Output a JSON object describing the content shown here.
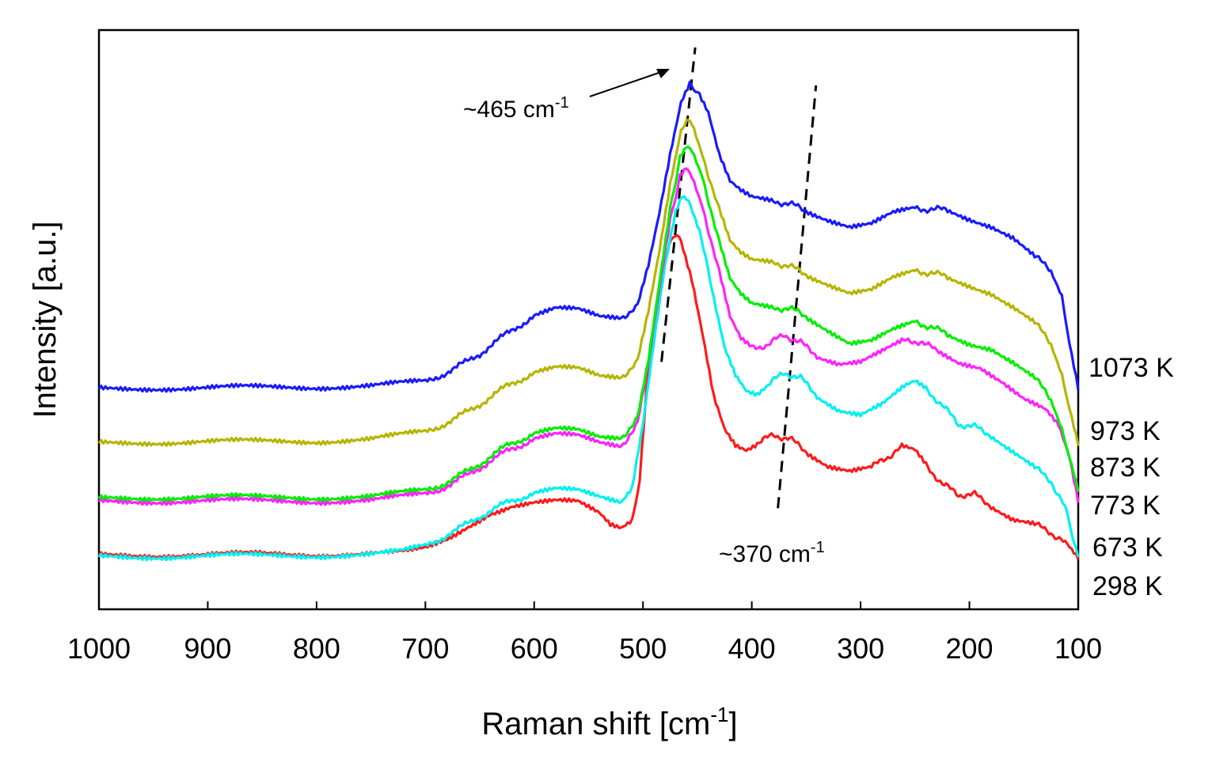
{
  "chart_data": {
    "type": "line",
    "title": "",
    "xlabel": "Raman shift [cm",
    "xlabel_sup": "-1",
    "xlabel_suffix": "]",
    "ylabel": "Intensity [a.u.]",
    "xlim": [
      1000,
      100
    ],
    "x_reversed": true,
    "ylim": [
      0,
      1
    ],
    "grid": false,
    "legend": "right-side labels",
    "x_ticks": [
      1000,
      900,
      800,
      700,
      600,
      500,
      400,
      300,
      200,
      100
    ],
    "series": [
      {
        "name": "1073 K",
        "color": "#1a1aff",
        "points": [
          [
            1000,
            0.37
          ],
          [
            950,
            0.372
          ],
          [
            900,
            0.372
          ],
          [
            850,
            0.373
          ],
          [
            800,
            0.374
          ],
          [
            750,
            0.376
          ],
          [
            700,
            0.383
          ],
          [
            675,
            0.405
          ],
          [
            650,
            0.435
          ],
          [
            625,
            0.472
          ],
          [
            600,
            0.505
          ],
          [
            580,
            0.517
          ],
          [
            560,
            0.515
          ],
          [
            540,
            0.503
          ],
          [
            520,
            0.502
          ],
          [
            505,
            0.522
          ],
          [
            495,
            0.595
          ],
          [
            485,
            0.69
          ],
          [
            475,
            0.8
          ],
          [
            465,
            0.897
          ],
          [
            457,
            0.933
          ],
          [
            450,
            0.92
          ],
          [
            440,
            0.878
          ],
          [
            430,
            0.8
          ],
          [
            420,
            0.75
          ],
          [
            410,
            0.733
          ],
          [
            400,
            0.722
          ],
          [
            380,
            0.717
          ],
          [
            365,
            0.711
          ],
          [
            350,
            0.7
          ],
          [
            330,
            0.684
          ],
          [
            310,
            0.67
          ],
          [
            290,
            0.674
          ],
          [
            270,
            0.693
          ],
          [
            250,
            0.702
          ],
          [
            235,
            0.702
          ],
          [
            220,
            0.7
          ],
          [
            200,
            0.685
          ],
          [
            180,
            0.672
          ],
          [
            160,
            0.65
          ],
          [
            140,
            0.614
          ],
          [
            125,
            0.59
          ],
          [
            115,
            0.545
          ],
          [
            108,
            0.45
          ],
          [
            100,
            0.368
          ]
        ]
      },
      {
        "name": "973 K",
        "color": "#b5b500",
        "points": [
          [
            1000,
            0.27
          ],
          [
            950,
            0.272
          ],
          [
            900,
            0.273
          ],
          [
            850,
            0.273
          ],
          [
            800,
            0.274
          ],
          [
            750,
            0.278
          ],
          [
            700,
            0.29
          ],
          [
            675,
            0.312
          ],
          [
            650,
            0.342
          ],
          [
            625,
            0.375
          ],
          [
            600,
            0.4
          ],
          [
            580,
            0.408
          ],
          [
            560,
            0.406
          ],
          [
            540,
            0.393
          ],
          [
            520,
            0.392
          ],
          [
            505,
            0.42
          ],
          [
            495,
            0.51
          ],
          [
            485,
            0.62
          ],
          [
            475,
            0.745
          ],
          [
            465,
            0.845
          ],
          [
            460,
            0.868
          ],
          [
            455,
            0.86
          ],
          [
            445,
            0.8
          ],
          [
            430,
            0.7
          ],
          [
            420,
            0.64
          ],
          [
            410,
            0.618
          ],
          [
            400,
            0.606
          ],
          [
            380,
            0.604
          ],
          [
            365,
            0.596
          ],
          [
            350,
            0.582
          ],
          [
            330,
            0.565
          ],
          [
            310,
            0.548
          ],
          [
            290,
            0.552
          ],
          [
            270,
            0.573
          ],
          [
            250,
            0.586
          ],
          [
            235,
            0.585
          ],
          [
            220,
            0.576
          ],
          [
            200,
            0.562
          ],
          [
            180,
            0.548
          ],
          [
            160,
            0.522
          ],
          [
            140,
            0.492
          ],
          [
            125,
            0.455
          ],
          [
            115,
            0.4
          ],
          [
            108,
            0.33
          ],
          [
            100,
            0.265
          ]
        ]
      },
      {
        "name": "873 K",
        "color": "#00ee00",
        "points": [
          [
            1000,
            0.168
          ],
          [
            950,
            0.17
          ],
          [
            900,
            0.171
          ],
          [
            850,
            0.17
          ],
          [
            800,
            0.17
          ],
          [
            750,
            0.172
          ],
          [
            700,
            0.182
          ],
          [
            675,
            0.202
          ],
          [
            650,
            0.232
          ],
          [
            625,
            0.265
          ],
          [
            600,
            0.288
          ],
          [
            580,
            0.295
          ],
          [
            560,
            0.292
          ],
          [
            540,
            0.28
          ],
          [
            520,
            0.28
          ],
          [
            505,
            0.315
          ],
          [
            495,
            0.42
          ],
          [
            485,
            0.56
          ],
          [
            475,
            0.7
          ],
          [
            466,
            0.8
          ],
          [
            460,
            0.818
          ],
          [
            455,
            0.81
          ],
          [
            445,
            0.76
          ],
          [
            430,
            0.64
          ],
          [
            420,
            0.57
          ],
          [
            410,
            0.542
          ],
          [
            400,
            0.525
          ],
          [
            380,
            0.52
          ],
          [
            365,
            0.518
          ],
          [
            350,
            0.505
          ],
          [
            330,
            0.48
          ],
          [
            310,
            0.455
          ],
          [
            290,
            0.458
          ],
          [
            270,
            0.477
          ],
          [
            250,
            0.492
          ],
          [
            235,
            0.485
          ],
          [
            220,
            0.47
          ],
          [
            200,
            0.455
          ],
          [
            180,
            0.446
          ],
          [
            160,
            0.42
          ],
          [
            140,
            0.39
          ],
          [
            125,
            0.352
          ],
          [
            115,
            0.3
          ],
          [
            108,
            0.24
          ],
          [
            100,
            0.18
          ]
        ]
      },
      {
        "name": "773 K",
        "color": "#ff22ff",
        "points": [
          [
            1000,
            0.162
          ],
          [
            950,
            0.163
          ],
          [
            900,
            0.164
          ],
          [
            850,
            0.163
          ],
          [
            800,
            0.163
          ],
          [
            750,
            0.165
          ],
          [
            700,
            0.175
          ],
          [
            675,
            0.195
          ],
          [
            650,
            0.225
          ],
          [
            625,
            0.255
          ],
          [
            600,
            0.278
          ],
          [
            580,
            0.285
          ],
          [
            560,
            0.282
          ],
          [
            540,
            0.27
          ],
          [
            520,
            0.265
          ],
          [
            505,
            0.305
          ],
          [
            495,
            0.415
          ],
          [
            485,
            0.55
          ],
          [
            475,
            0.68
          ],
          [
            466,
            0.765
          ],
          [
            462,
            0.775
          ],
          [
            455,
            0.762
          ],
          [
            445,
            0.705
          ],
          [
            430,
            0.585
          ],
          [
            420,
            0.5
          ],
          [
            410,
            0.46
          ],
          [
            400,
            0.445
          ],
          [
            385,
            0.452
          ],
          [
            370,
            0.47
          ],
          [
            355,
            0.455
          ],
          [
            340,
            0.432
          ],
          [
            320,
            0.418
          ],
          [
            300,
            0.42
          ],
          [
            280,
            0.438
          ],
          [
            260,
            0.458
          ],
          [
            245,
            0.458
          ],
          [
            230,
            0.44
          ],
          [
            210,
            0.42
          ],
          [
            190,
            0.412
          ],
          [
            170,
            0.385
          ],
          [
            150,
            0.352
          ],
          [
            130,
            0.33
          ],
          [
            118,
            0.3
          ],
          [
            108,
            0.24
          ],
          [
            100,
            0.16
          ]
        ]
      },
      {
        "name": "673 K",
        "color": "#00f0f0",
        "points": [
          [
            1000,
            0.06
          ],
          [
            950,
            0.061
          ],
          [
            900,
            0.062
          ],
          [
            850,
            0.062
          ],
          [
            800,
            0.063
          ],
          [
            750,
            0.065
          ],
          [
            720,
            0.07
          ],
          [
            700,
            0.08
          ],
          [
            675,
            0.105
          ],
          [
            650,
            0.135
          ],
          [
            625,
            0.16
          ],
          [
            600,
            0.178
          ],
          [
            580,
            0.184
          ],
          [
            560,
            0.181
          ],
          [
            540,
            0.17
          ],
          [
            520,
            0.162
          ],
          [
            510,
            0.19
          ],
          [
            500,
            0.31
          ],
          [
            490,
            0.46
          ],
          [
            480,
            0.6
          ],
          [
            470,
            0.7
          ],
          [
            464,
            0.728
          ],
          [
            458,
            0.718
          ],
          [
            448,
            0.66
          ],
          [
            435,
            0.54
          ],
          [
            425,
            0.45
          ],
          [
            415,
            0.4
          ],
          [
            405,
            0.37
          ],
          [
            395,
            0.362
          ],
          [
            385,
            0.378
          ],
          [
            370,
            0.4
          ],
          [
            355,
            0.39
          ],
          [
            340,
            0.358
          ],
          [
            320,
            0.332
          ],
          [
            300,
            0.322
          ],
          [
            280,
            0.34
          ],
          [
            260,
            0.372
          ],
          [
            250,
            0.382
          ],
          [
            240,
            0.37
          ],
          [
            225,
            0.34
          ],
          [
            210,
            0.305
          ],
          [
            195,
            0.3
          ],
          [
            180,
            0.285
          ],
          [
            160,
            0.255
          ],
          [
            140,
            0.225
          ],
          [
            125,
            0.2
          ],
          [
            112,
            0.15
          ],
          [
            105,
            0.1
          ],
          [
            100,
            0.06
          ]
        ]
      },
      {
        "name": "298 K",
        "color": "#ff1a1a",
        "points": [
          [
            1000,
            0.063
          ],
          [
            950,
            0.064
          ],
          [
            900,
            0.064
          ],
          [
            850,
            0.065
          ],
          [
            800,
            0.065
          ],
          [
            750,
            0.066
          ],
          [
            720,
            0.068
          ],
          [
            700,
            0.075
          ],
          [
            680,
            0.092
          ],
          [
            660,
            0.118
          ],
          [
            640,
            0.142
          ],
          [
            620,
            0.155
          ],
          [
            600,
            0.16
          ],
          [
            580,
            0.162
          ],
          [
            560,
            0.16
          ],
          [
            540,
            0.14
          ],
          [
            530,
            0.12
          ],
          [
            520,
            0.115
          ],
          [
            510,
            0.13
          ],
          [
            503,
            0.2
          ],
          [
            497,
            0.36
          ],
          [
            490,
            0.48
          ],
          [
            483,
            0.58
          ],
          [
            476,
            0.64
          ],
          [
            472,
            0.655
          ],
          [
            465,
            0.64
          ],
          [
            455,
            0.57
          ],
          [
            445,
            0.47
          ],
          [
            435,
            0.36
          ],
          [
            425,
            0.3
          ],
          [
            415,
            0.27
          ],
          [
            405,
            0.26
          ],
          [
            395,
            0.27
          ],
          [
            380,
            0.285
          ],
          [
            365,
            0.278
          ],
          [
            350,
            0.255
          ],
          [
            330,
            0.23
          ],
          [
            310,
            0.22
          ],
          [
            290,
            0.225
          ],
          [
            275,
            0.245
          ],
          [
            262,
            0.262
          ],
          [
            250,
            0.255
          ],
          [
            240,
            0.23
          ],
          [
            225,
            0.195
          ],
          [
            210,
            0.175
          ],
          [
            195,
            0.175
          ],
          [
            180,
            0.155
          ],
          [
            160,
            0.13
          ],
          [
            140,
            0.12
          ],
          [
            125,
            0.105
          ],
          [
            112,
            0.085
          ],
          [
            100,
            0.055
          ]
        ]
      }
    ],
    "series_labels": [
      "1073 K",
      "973 K",
      "873 K",
      "773 K",
      "673 K",
      "298 K"
    ],
    "annotations": [
      {
        "text": "~465 cm",
        "sup": "-1",
        "points_to_x": 457,
        "points_to_y": 0.93
      },
      {
        "text": "~370 cm",
        "sup": "-1"
      }
    ],
    "guide_lines": [
      {
        "from": [
          483,
          0.42
        ],
        "to": [
          452,
          1.0
        ],
        "style": "dashed"
      },
      {
        "from": [
          376,
          0.15
        ],
        "to": [
          341,
          0.93
        ],
        "style": "dashed"
      }
    ]
  }
}
